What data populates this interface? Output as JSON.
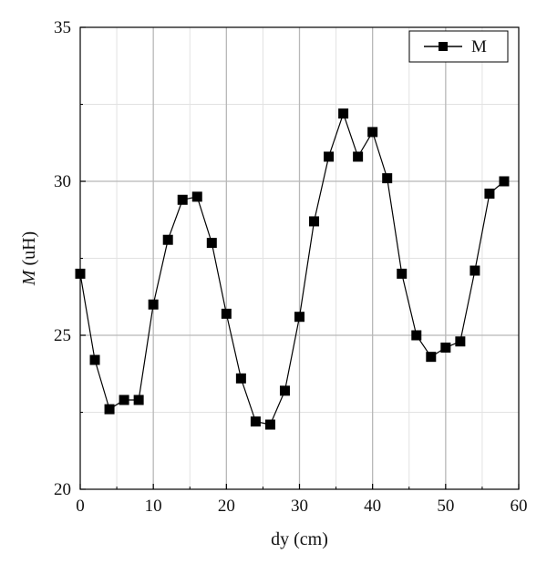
{
  "chart_data": {
    "type": "line",
    "title": "",
    "xlabel": "dy (cm)",
    "ylabel": {
      "italic": "M",
      "rest": " (uH)"
    },
    "xlim": [
      0,
      60
    ],
    "ylim": [
      20,
      35
    ],
    "xticks": [
      "0",
      "10",
      "20",
      "30",
      "40",
      "50",
      "60"
    ],
    "yticks": [
      "20",
      "25",
      "30",
      "35"
    ],
    "grid": true,
    "legend_position": "top-right",
    "colors": {
      "series": "#000000",
      "grid_major": "#b8b8b8",
      "grid_minor": "#e2e2e2"
    },
    "series": [
      {
        "name": "M",
        "marker": "square",
        "x": [
          0,
          2,
          4,
          6,
          8,
          10,
          12,
          14,
          16,
          18,
          20,
          22,
          24,
          26,
          28,
          30,
          32,
          34,
          36,
          38,
          40,
          42,
          44,
          46,
          48,
          50,
          52,
          54,
          56,
          58
        ],
        "values": [
          27.0,
          24.2,
          22.6,
          22.9,
          22.9,
          26.0,
          28.1,
          29.4,
          29.5,
          28.0,
          25.7,
          23.6,
          22.2,
          22.1,
          23.2,
          25.6,
          28.7,
          30.8,
          32.2,
          30.8,
          31.6,
          30.1,
          27.0,
          25.0,
          24.3,
          24.6,
          24.8,
          27.1,
          29.6,
          30.0
        ]
      }
    ]
  }
}
